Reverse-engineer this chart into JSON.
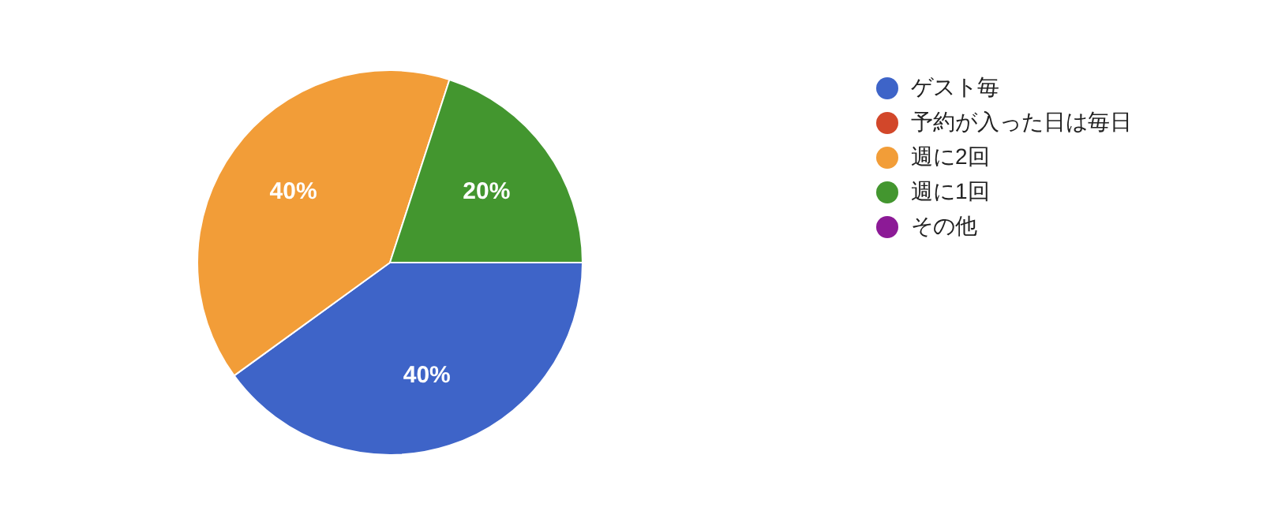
{
  "chart_data": {
    "type": "pie",
    "categories": [
      "ゲスト毎",
      "予約が入った日は毎日",
      "週に2回",
      "週に1回",
      "その他"
    ],
    "values": [
      40,
      0,
      40,
      20,
      0
    ],
    "colors": [
      "#3e64c8",
      "#d2472a",
      "#f29d38",
      "#43962f",
      "#8c1a96"
    ],
    "value_labels": [
      "40%",
      null,
      "40%",
      "20%",
      null
    ],
    "legend": "right"
  }
}
